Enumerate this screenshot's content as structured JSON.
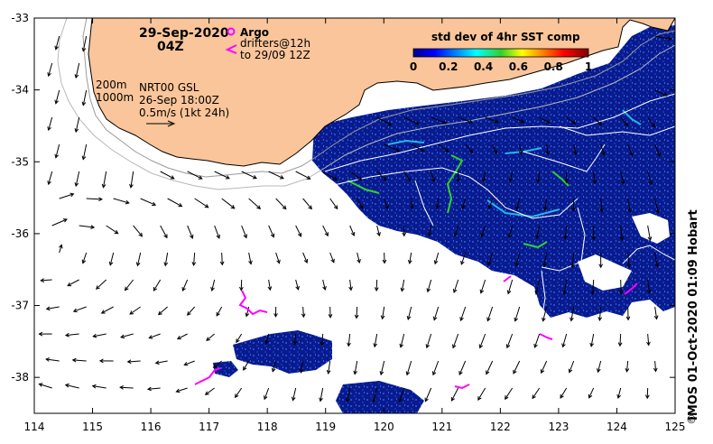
{
  "map": {
    "title_date": "29-Sep-2020",
    "title_time": "04Z",
    "argo_label": "Argo",
    "drifters_label": "drifters@12h",
    "drifters_to": "to 29/09 12Z",
    "depth_200": "200m",
    "depth_1000": "1000m",
    "altimetry_product": "NRT00 GSL",
    "altimetry_time": "26-Sep 18:00Z",
    "vector_scale": "0.5m/s (1kt 24h)",
    "colorbar_title": "std dev of 4hr SST comp",
    "colorbar_ticks": [
      "0",
      "0.2",
      "0.4",
      "0.6",
      "0.8",
      "1"
    ],
    "credit": "IMOS 01-Oct-2020 01:09 Hobart",
    "copyright_symbol": "©",
    "lon_ticks": [
      "114",
      "115",
      "116",
      "117",
      "118",
      "119",
      "120",
      "121",
      "122",
      "123",
      "124",
      "125"
    ],
    "lat_ticks": [
      "-33",
      "-34",
      "-35",
      "-36",
      "-37",
      "-38"
    ],
    "extent": {
      "lon": [
        114,
        125
      ],
      "lat": [
        -38.5,
        -33
      ]
    },
    "colors": {
      "land": "#fac59a",
      "ocean_data": "#0a1a8c",
      "argo": "#ff00ff",
      "drifters": "#ff00ff",
      "sst_high": "#2fd12f"
    },
    "icons": {
      "argo_marker": "magenta-circle-icon",
      "drifter_marker": "magenta-chevron-icon"
    }
  }
}
